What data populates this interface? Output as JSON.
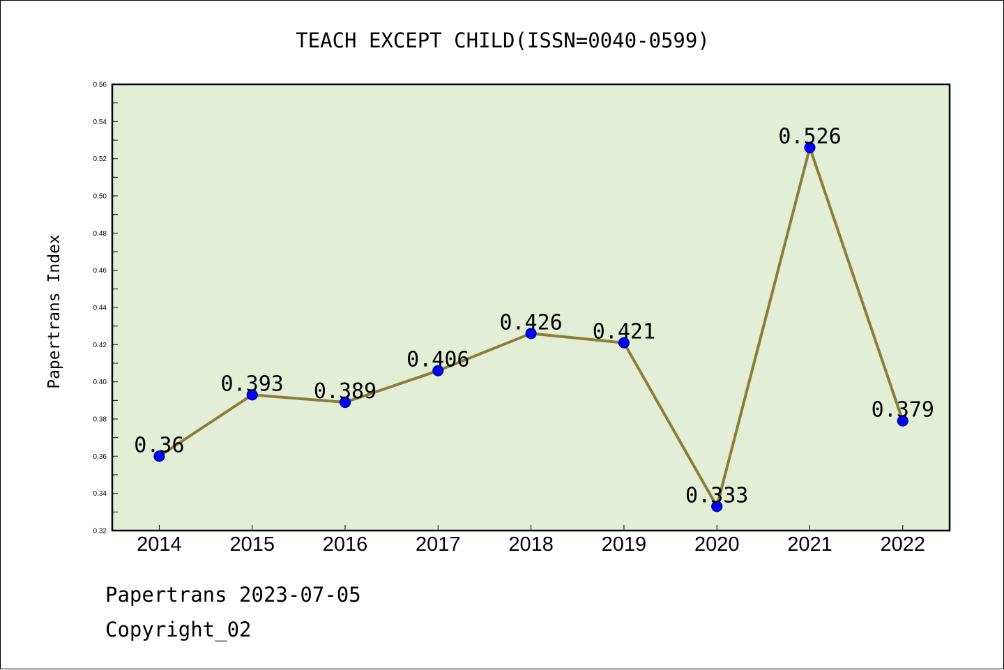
{
  "colors": {
    "plot_background": "#e2efd6",
    "line": "#8b7d3a",
    "marker": "#0000ff",
    "marker_edge": "#00008b",
    "axis": "#000000",
    "page_background": "#ffffff"
  },
  "footer": {
    "date_line": "Papertrans 2023-07-05",
    "copyright_line": "Copyright_02"
  },
  "chart_data": {
    "type": "line",
    "title": "TEACH EXCEPT CHILD(ISSN=0040-0599)",
    "xlabel": "",
    "ylabel": "Papertrans Index",
    "categories": [
      "2014",
      "2015",
      "2016",
      "2017",
      "2018",
      "2019",
      "2020",
      "2021",
      "2022"
    ],
    "series": [
      {
        "values": [
          0.36,
          0.393,
          0.389,
          0.406,
          0.426,
          0.421,
          0.333,
          0.526,
          0.379
        ],
        "labels": [
          "0.36",
          "0.393",
          "0.389",
          "0.406",
          "0.426",
          "0.421",
          "0.333",
          "0.526",
          "0.379"
        ]
      }
    ],
    "ylim": [
      0.32,
      0.56
    ],
    "yticks": [
      "0.32",
      "0.34",
      "0.36",
      "0.38",
      "0.40",
      "0.42",
      "0.44",
      "0.46",
      "0.48",
      "0.50",
      "0.52",
      "0.54",
      "0.56"
    ],
    "grid": false,
    "legend": "none"
  }
}
